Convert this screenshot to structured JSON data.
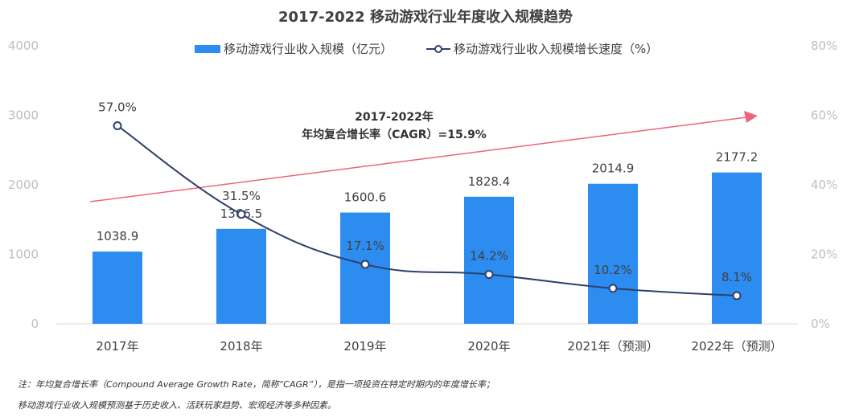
{
  "chart_data": {
    "type": "bar+line",
    "title": "2017-2022  移动游戏行业年度收入规模趋势",
    "categories": [
      "2017年",
      "2018年",
      "2019年",
      "2020年",
      "2021年（预测）",
      "2022年（预测）"
    ],
    "series": [
      {
        "name": "移动游戏行业收入规模（亿元）",
        "type": "bar",
        "axis": "left",
        "color": "#2d8cf0",
        "values": [
          1038.9,
          1366.5,
          1600.6,
          1828.4,
          2014.9,
          2177.2
        ],
        "labels": [
          "1038.9",
          "1366.5",
          "1600.6",
          "1828.4",
          "2014.9",
          "2177.2"
        ]
      },
      {
        "name": "移动游戏行业收入规模增长速度（%）",
        "type": "line",
        "axis": "right",
        "color": "#2e3f6b",
        "values": [
          57.0,
          31.5,
          17.1,
          14.2,
          10.2,
          8.1
        ],
        "labels": [
          "57.0%",
          "31.5%",
          "17.1%",
          "14.2%",
          "10.2%",
          "8.1%"
        ]
      }
    ],
    "left_axis": {
      "range": [
        0,
        4000
      ],
      "ticks": [
        "0",
        "1000",
        "2000",
        "3000",
        "4000"
      ]
    },
    "right_axis": {
      "range": [
        0,
        80
      ],
      "ticks": [
        "0%",
        "20%",
        "40%",
        "60%",
        "80%"
      ]
    },
    "legend_position": "top-center",
    "annotation": {
      "line1": "2017-2022年",
      "line2": "年均复合增长率（CAGR）=15.9%",
      "arrow_color": "#f0647a"
    },
    "grid": false
  },
  "notes": [
    "注：年均复合增长率（Compound Average Growth Rate，简称“CAGR”），是指一项投资在特定时期内的年度增长率；",
    "移动游戏行业收入规模预测基于历史收入、活跃玩家趋势、宏观经济等多种因素。"
  ]
}
